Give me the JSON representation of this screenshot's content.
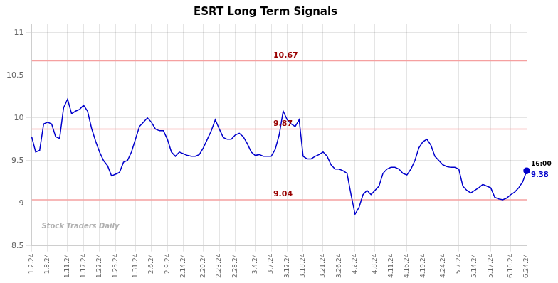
{
  "chart_data": {
    "type": "line",
    "title": "ESRT Long Term Signals",
    "categories": [
      "1.2.24",
      null,
      null,
      null,
      "1.8.24",
      null,
      null,
      null,
      null,
      "1.11.24",
      null,
      null,
      null,
      "1.17.24",
      null,
      null,
      null,
      "1.22.24",
      null,
      null,
      null,
      "1.25.24",
      null,
      null,
      null,
      null,
      "1.31.24",
      null,
      null,
      null,
      "2.6.24",
      null,
      null,
      null,
      "2.9.24",
      null,
      null,
      null,
      "2.14.24",
      null,
      null,
      null,
      null,
      "2.20.24",
      null,
      null,
      null,
      "2.23.24",
      null,
      null,
      null,
      "2.28.24",
      null,
      null,
      null,
      null,
      "3.4.24",
      null,
      null,
      null,
      "3.7.24",
      null,
      null,
      null,
      "3.12.24",
      null,
      null,
      null,
      "3.18.24",
      null,
      null,
      null,
      null,
      "3.21.24",
      null,
      null,
      null,
      "3.26.24",
      null,
      null,
      null,
      "4.2.24",
      null,
      null,
      null,
      null,
      "4.8.24",
      null,
      null,
      null,
      "4.11.24",
      null,
      null,
      null,
      "4.16.24",
      null,
      null,
      null,
      "4.19.24",
      null,
      null,
      null,
      null,
      "4.24.24",
      null,
      null,
      null,
      "5.7.24",
      null,
      null,
      null,
      "5.14.24",
      null,
      null,
      null,
      "5.17.24",
      null,
      null,
      null,
      null,
      "6.10.24",
      null,
      null,
      null,
      "6.24.24"
    ],
    "values": [
      9.78,
      9.6,
      9.62,
      9.93,
      9.95,
      9.93,
      9.78,
      9.76,
      10.12,
      10.22,
      10.05,
      10.08,
      10.1,
      10.15,
      10.08,
      9.88,
      9.73,
      9.6,
      9.5,
      9.44,
      9.32,
      9.34,
      9.36,
      9.48,
      9.5,
      9.6,
      9.75,
      9.9,
      9.95,
      10.0,
      9.95,
      9.87,
      9.85,
      9.85,
      9.75,
      9.6,
      9.55,
      9.6,
      9.58,
      9.56,
      9.55,
      9.55,
      9.57,
      9.65,
      9.75,
      9.85,
      9.98,
      9.87,
      9.77,
      9.75,
      9.75,
      9.8,
      9.82,
      9.78,
      9.7,
      9.6,
      9.56,
      9.57,
      9.55,
      9.55,
      9.55,
      9.63,
      9.8,
      10.08,
      9.98,
      9.93,
      9.9,
      9.98,
      9.55,
      9.52,
      9.52,
      9.55,
      9.57,
      9.6,
      9.55,
      9.45,
      9.4,
      9.4,
      9.38,
      9.35,
      9.1,
      8.87,
      8.95,
      9.1,
      9.15,
      9.1,
      9.15,
      9.2,
      9.35,
      9.4,
      9.42,
      9.42,
      9.4,
      9.35,
      9.33,
      9.4,
      9.5,
      9.65,
      9.72,
      9.75,
      9.68,
      9.55,
      9.5,
      9.45,
      9.43,
      9.42,
      9.42,
      9.4,
      9.2,
      9.15,
      9.12,
      9.15,
      9.18,
      9.22,
      9.2,
      9.18,
      9.07,
      9.05,
      9.04,
      9.06,
      9.1,
      9.13,
      9.18,
      9.25,
      9.38
    ],
    "color": "#0000cc",
    "ylim": [
      8.5,
      11.1
    ],
    "yticks": [
      8.5,
      9,
      9.5,
      10,
      10.5,
      11
    ],
    "grid": true,
    "reference_lines": [
      {
        "value": 10.67,
        "label": "10.67",
        "color": "#f5a0a0",
        "label_color": "#990000"
      },
      {
        "value": 9.87,
        "label": "9.87",
        "color": "#f5a0a0",
        "label_color": "#990000"
      },
      {
        "value": 9.04,
        "label": "9.04",
        "color": "#f5a0a0",
        "label_color": "#990000"
      }
    ],
    "end_annotation": {
      "label": "16:00",
      "label_color": "#000000",
      "value_label": "9.38",
      "color": "#0000cc"
    },
    "watermark": {
      "text": "Stock Traders Daily",
      "color": "#b0b0b0"
    }
  }
}
